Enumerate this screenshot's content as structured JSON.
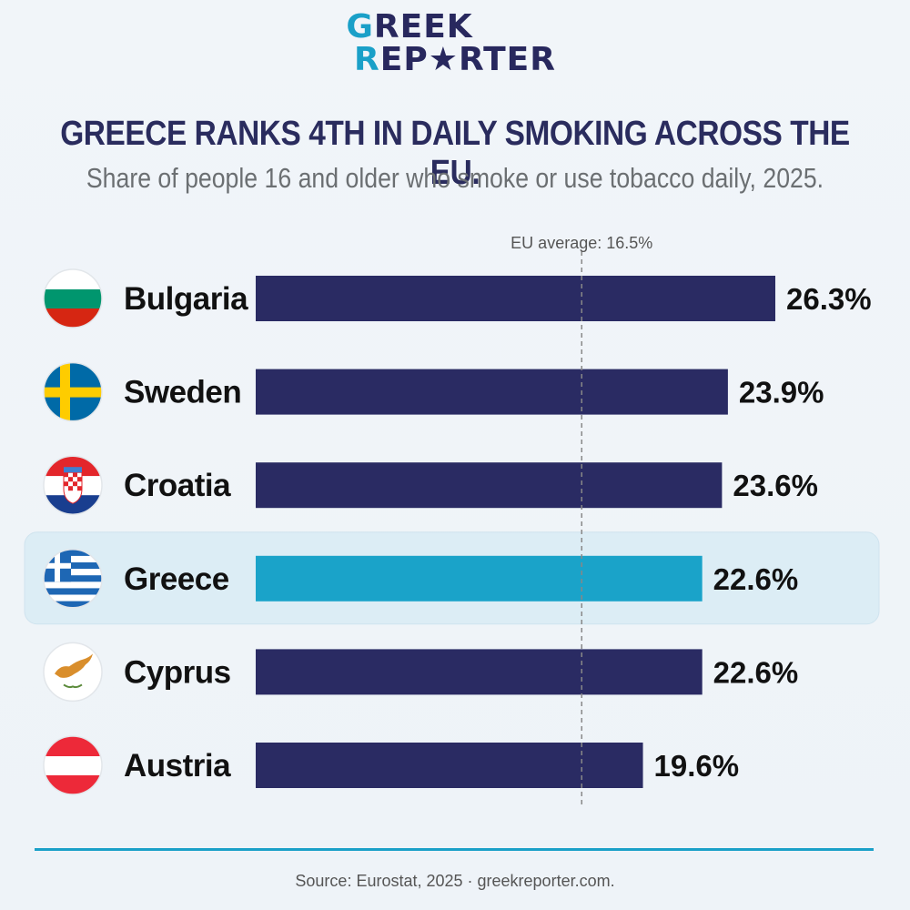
{
  "logo": {
    "line1_accent": "G",
    "line1_rest": "REEK",
    "line2_accent": "R",
    "line2_rest": "EP★RTER"
  },
  "title": "GREECE RANKS 4TH IN DAILY SMOKING ACROSS THE EU.",
  "subtitle": "Share of people 16 and older who smoke or use tobacco daily, 2025.",
  "source": "Source: Eurostat, 2025 · greekreporter.com.",
  "colors": {
    "bar": "#2a2b63",
    "highlight_bar": "#1aa3c9",
    "highlight_row": "#dcedf5",
    "reference_line": "#888888"
  },
  "chart_data": {
    "type": "bar",
    "orientation": "horizontal",
    "title": "GREECE RANKS 4TH IN DAILY SMOKING ACROSS THE EU.",
    "subtitle": "Share of people 16 and older who smoke or use tobacco daily, 2025.",
    "xlabel": "",
    "ylabel": "",
    "categories": [
      "Bulgaria",
      "Sweden",
      "Croatia",
      "Greece",
      "Cyprus",
      "Austria"
    ],
    "values": [
      26.3,
      23.9,
      23.6,
      22.6,
      22.6,
      19.6
    ],
    "value_labels": [
      "26.3%",
      "23.9%",
      "23.6%",
      "22.6%",
      "22.6%",
      "19.6%"
    ],
    "highlight": "Greece",
    "reference_line": {
      "value": 16.5,
      "label": "EU average: 16.5%"
    },
    "xlim": [
      0,
      26.3
    ],
    "grid": false,
    "legend": "none",
    "flags": [
      "bulgaria-flag-icon",
      "sweden-flag-icon",
      "croatia-flag-icon",
      "greece-flag-icon",
      "cyprus-flag-icon",
      "austria-flag-icon"
    ]
  }
}
